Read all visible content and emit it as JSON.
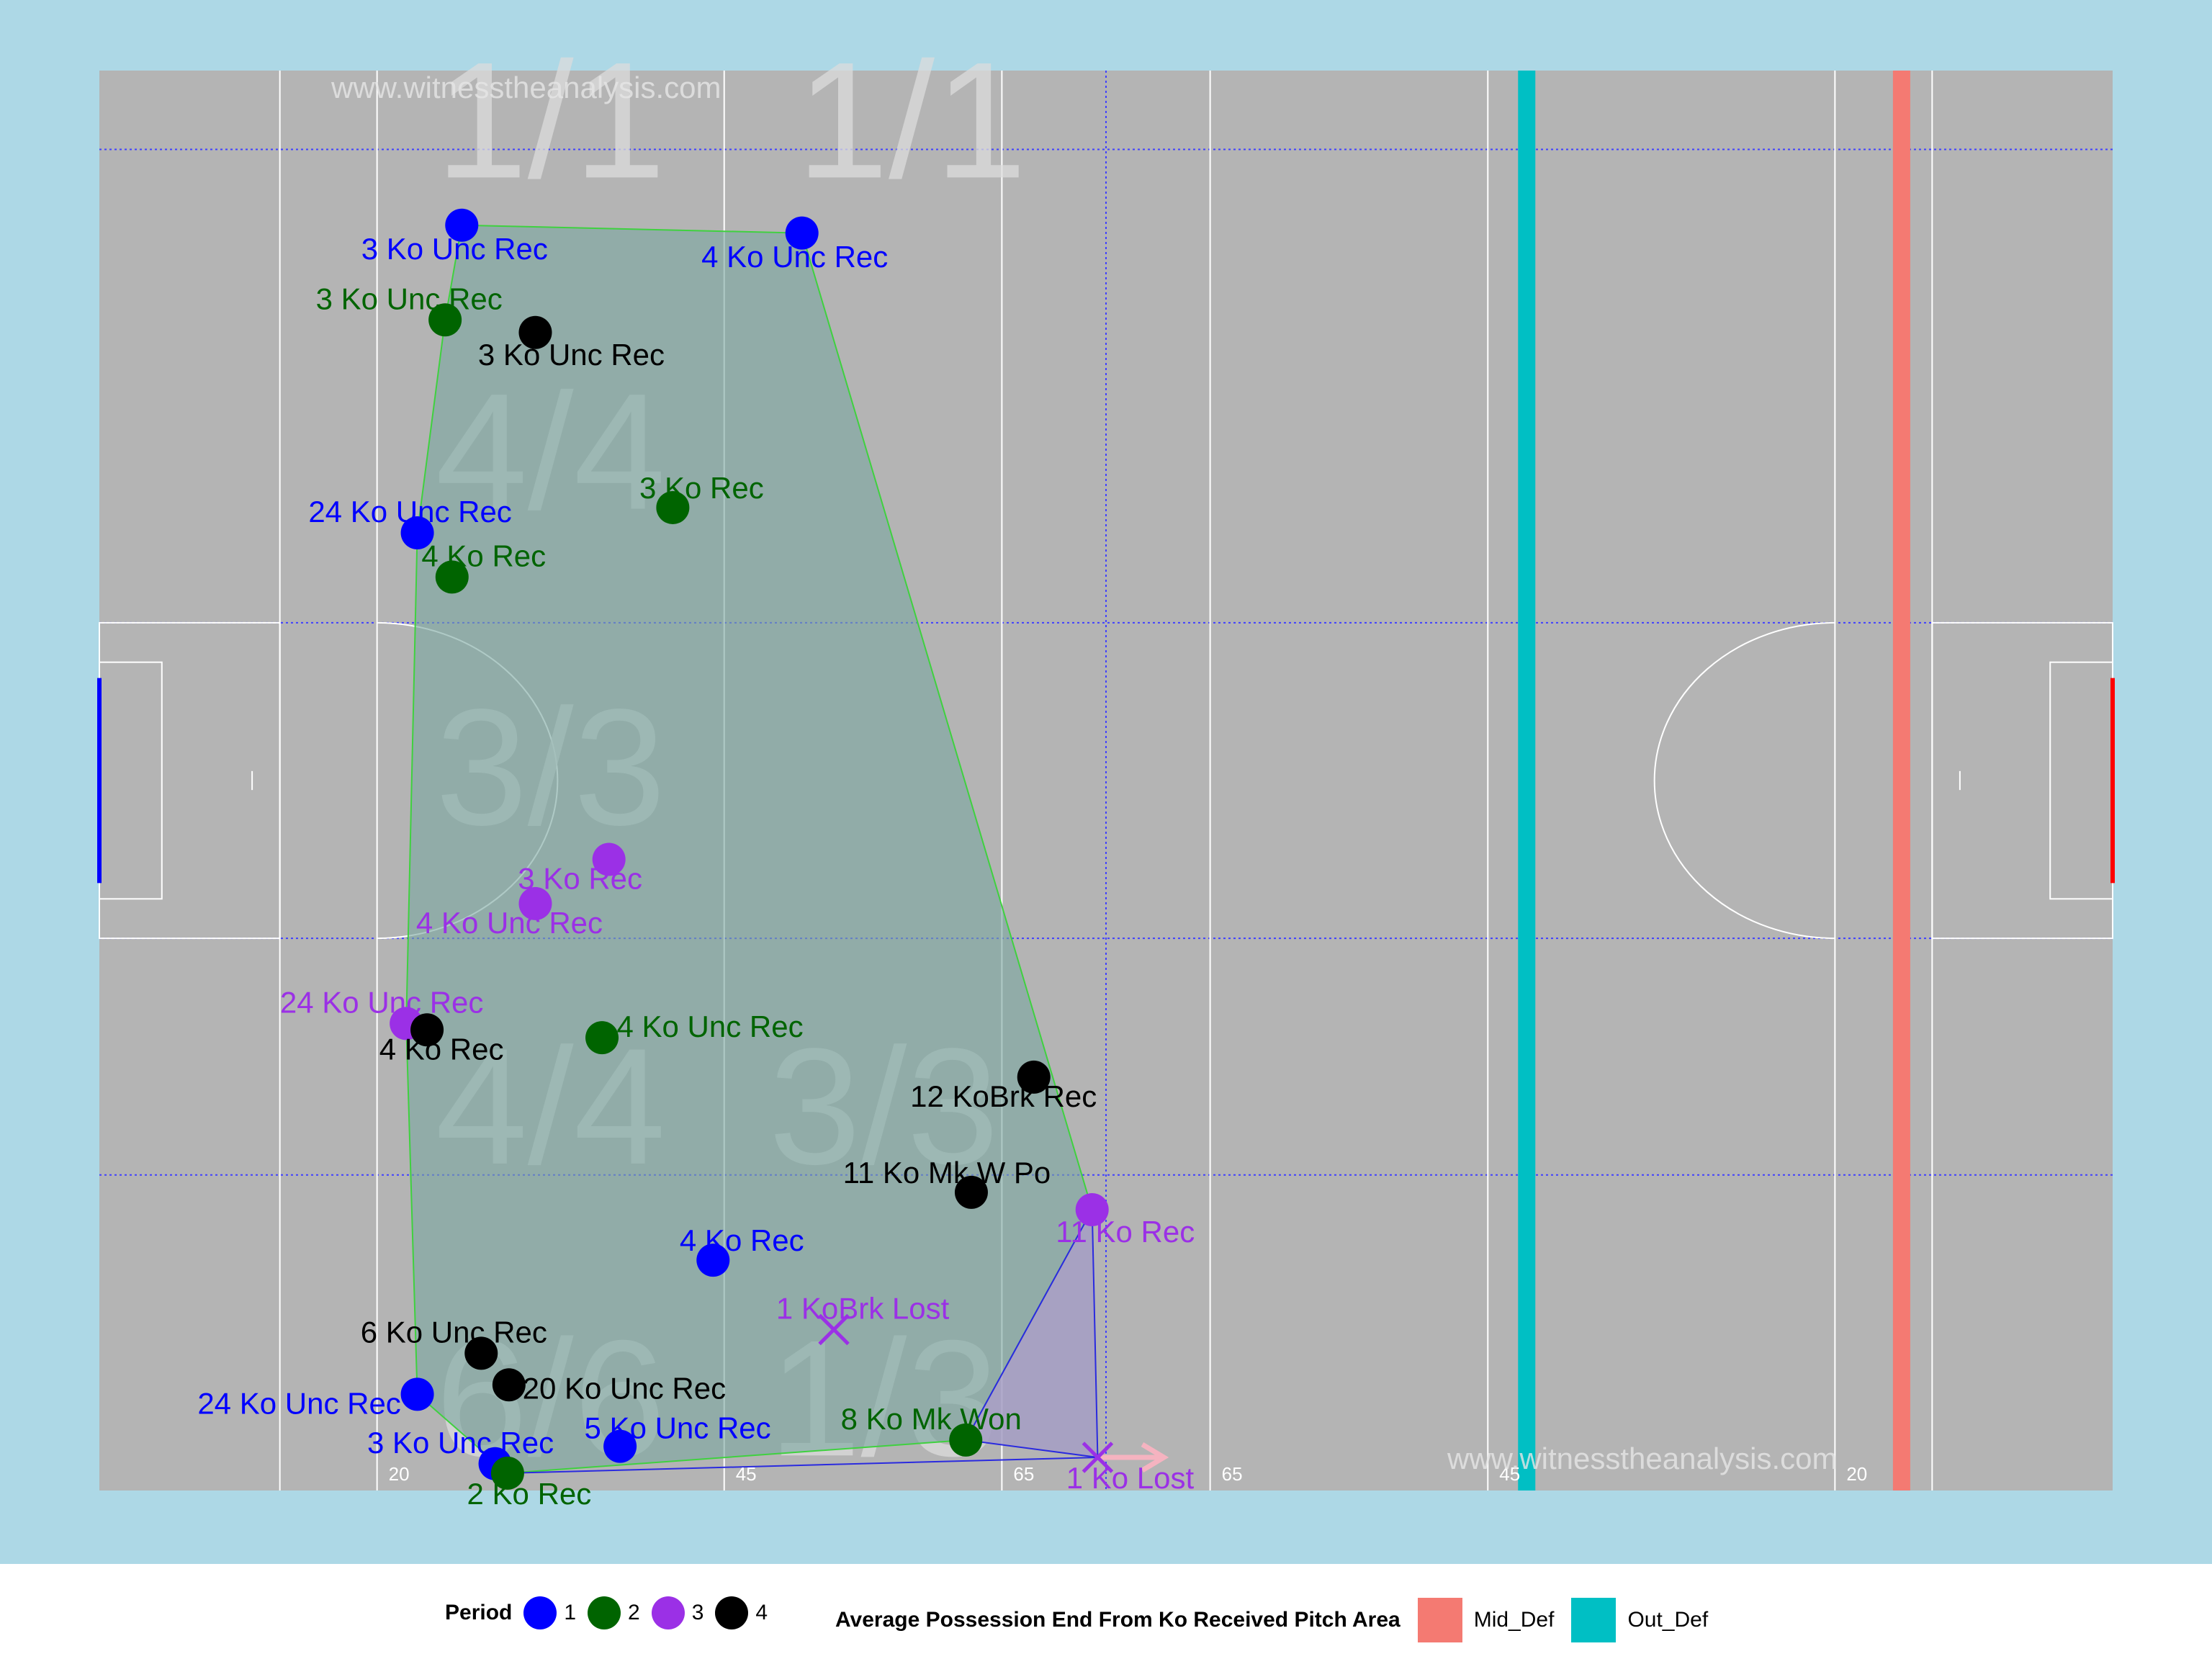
{
  "watermark": "www.witnesstheanalysis.com",
  "colors": {
    "background": "#add8e6",
    "pitch": "#b4b4b4",
    "hull_fill": "#7aa6a0",
    "hull_stroke": "#3fd13f",
    "sub_hull_fill": "#a59dc4",
    "sub_hull_stroke": "#2a2adf",
    "mid_def": "#f47a72",
    "out_def": "#00bfc4",
    "left_goal": "#0000ff",
    "right_goal": "#ff0000",
    "lost_arrow": "#f5b3c0",
    "period_colors": {
      "1": "#0000ff",
      "2": "#006400",
      "3": "#9b30e6",
      "4": "#000000"
    }
  },
  "chart_data": {
    "type": "scatter",
    "title": "",
    "xlabel": "",
    "ylabel": "",
    "xlim": [
      0,
      145
    ],
    "ylim": [
      0,
      90
    ],
    "grid": true,
    "pitch_markings": [
      "20",
      "45",
      "65",
      "65",
      "45",
      "20"
    ],
    "zone_ratios": [
      {
        "text": "1/1",
        "x": 32.5,
        "y": 86
      },
      {
        "text": "1/1",
        "x": 58.5,
        "y": 86
      },
      {
        "text": "4/4",
        "x": 32.5,
        "y": 65
      },
      {
        "text": "3/3",
        "x": 32.5,
        "y": 45
      },
      {
        "text": "4/4",
        "x": 32.5,
        "y": 23.5
      },
      {
        "text": "3/3",
        "x": 56.5,
        "y": 23.5
      },
      {
        "text": "6/6",
        "x": 32.5,
        "y": 5
      },
      {
        "text": "1/3",
        "x": 56.5,
        "y": 5
      }
    ],
    "vertical_lines": [
      {
        "name": "Out_Def",
        "x": 102.8
      },
      {
        "name": "Mid_Def",
        "x": 129.8
      }
    ],
    "points": [
      {
        "x": 26.1,
        "y": 80.2,
        "period": 1,
        "label": "3 Ko Unc Rec",
        "outcome": "won"
      },
      {
        "x": 50.6,
        "y": 79.7,
        "period": 1,
        "label": "4 Ko Unc Rec",
        "outcome": "won"
      },
      {
        "x": 24.9,
        "y": 74.2,
        "period": 2,
        "label": "3 Ko Unc Rec",
        "outcome": "won"
      },
      {
        "x": 31.4,
        "y": 73.4,
        "period": 4,
        "label": "3 Ko Unc Rec",
        "outcome": "won"
      },
      {
        "x": 41.3,
        "y": 62.3,
        "period": 2,
        "label": "3 Ko Rec",
        "outcome": "won"
      },
      {
        "x": 22.9,
        "y": 60.7,
        "period": 1,
        "label": "24 Ko Unc Rec",
        "outcome": "won"
      },
      {
        "x": 25.4,
        "y": 57.9,
        "period": 2,
        "label": "4 Ko Rec",
        "outcome": "won"
      },
      {
        "x": 36.7,
        "y": 40.0,
        "period": 3,
        "label": "3 Ko Rec",
        "outcome": "won"
      },
      {
        "x": 31.4,
        "y": 37.2,
        "period": 3,
        "label": "4 Ko Unc Rec",
        "outcome": "won"
      },
      {
        "x": 22.1,
        "y": 29.6,
        "period": 3,
        "label": "24 Ko Unc Rec",
        "outcome": "won"
      },
      {
        "x": 23.6,
        "y": 29.2,
        "period": 4,
        "label": "4 Ko Rec",
        "outcome": "won"
      },
      {
        "x": 36.2,
        "y": 28.7,
        "period": 2,
        "label": "4 Ko Unc Rec",
        "outcome": "won"
      },
      {
        "x": 67.3,
        "y": 26.2,
        "period": 4,
        "label": "12 KoBrk Rec",
        "outcome": "won"
      },
      {
        "x": 62.8,
        "y": 18.9,
        "period": 4,
        "label": "11 Ko Mk W Po",
        "outcome": "won"
      },
      {
        "x": 71.5,
        "y": 17.8,
        "period": 3,
        "label": "11 Ko Rec",
        "outcome": "won"
      },
      {
        "x": 44.2,
        "y": 14.6,
        "period": 1,
        "label": "4 Ko Rec",
        "outcome": "won"
      },
      {
        "x": 52.9,
        "y": 10.2,
        "period": 3,
        "label": "1 KoBrk Lost",
        "outcome": "lost"
      },
      {
        "x": 27.5,
        "y": 8.7,
        "period": 4,
        "label": "6 Ko Unc Rec",
        "outcome": "won"
      },
      {
        "x": 29.5,
        "y": 6.7,
        "period": 4,
        "label": "20 Ko Unc Rec",
        "outcome": "won"
      },
      {
        "x": 22.9,
        "y": 6.1,
        "period": 1,
        "label": "24 Ko Unc Rec",
        "outcome": "won"
      },
      {
        "x": 37.5,
        "y": 2.8,
        "period": 1,
        "label": "5 Ko Unc Rec",
        "outcome": "won"
      },
      {
        "x": 62.4,
        "y": 3.2,
        "period": 2,
        "label": "8 Ko Mk Won",
        "outcome": "won"
      },
      {
        "x": 28.5,
        "y": 1.7,
        "period": 1,
        "label": "3 Ko Unc Rec",
        "outcome": "won"
      },
      {
        "x": 29.4,
        "y": 1.1,
        "period": 2,
        "label": "2 Ko Rec",
        "outcome": "won"
      },
      {
        "x": 71.9,
        "y": 2.1,
        "period": 3,
        "label": "1 Ko Lost",
        "outcome": "lost"
      }
    ],
    "hull": [
      [
        26.1,
        80.2
      ],
      [
        50.6,
        79.7
      ],
      [
        71.5,
        17.8
      ],
      [
        62.4,
        3.2
      ],
      [
        29.4,
        1.1
      ],
      [
        22.9,
        6.1
      ],
      [
        22.1,
        29.6
      ],
      [
        22.9,
        60.7
      ],
      [
        24.9,
        74.2
      ]
    ],
    "sub_hull": [
      [
        71.5,
        17.8
      ],
      [
        71.9,
        2.1
      ],
      [
        62.4,
        3.2
      ]
    ],
    "sub_hull_base": [
      [
        29.4,
        1.1
      ],
      [
        71.9,
        2.1
      ]
    ]
  },
  "legend": {
    "period_title": "Period",
    "periods": [
      {
        "label": "1",
        "color": "#0000ff"
      },
      {
        "label": "2",
        "color": "#006400"
      },
      {
        "label": "3",
        "color": "#9b30e6"
      },
      {
        "label": "4",
        "color": "#000000"
      }
    ],
    "area_title": "Average Possession End From Ko Received Pitch Area",
    "areas": [
      {
        "label": "Mid_Def",
        "color": "#f47a72"
      },
      {
        "label": "Out_Def",
        "color": "#00bfc4"
      }
    ]
  }
}
